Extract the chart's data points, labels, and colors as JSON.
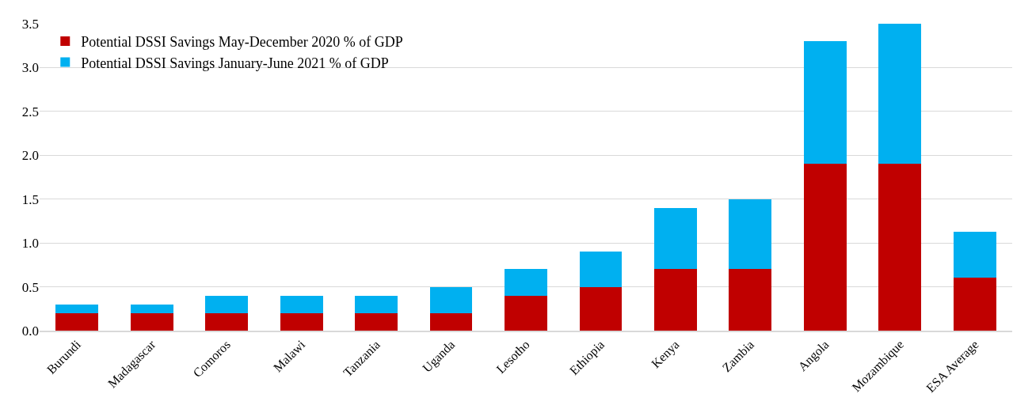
{
  "chart_data": {
    "type": "bar",
    "stacked": true,
    "categories": [
      "Burundi",
      "Madagascar",
      "Comoros",
      "Malawi",
      "Tanzania",
      "Uganda",
      "Lesotho",
      "Ethiopia",
      "Kenya",
      "Zambia",
      "Angola",
      "Mozambique",
      "ESA Average"
    ],
    "series": [
      {
        "name": "Potential DSSI Savings May-December 2020 % of GDP",
        "color": "#c00000",
        "values": [
          0.2,
          0.2,
          0.2,
          0.2,
          0.2,
          0.2,
          0.4,
          0.5,
          0.7,
          0.7,
          1.9,
          1.9,
          0.6
        ]
      },
      {
        "name": "Potential DSSI Savings January-June 2021 % of GDP",
        "color": "#00b0f0",
        "values": [
          0.1,
          0.1,
          0.2,
          0.2,
          0.2,
          0.3,
          0.3,
          0.4,
          0.7,
          0.8,
          1.4,
          1.6,
          0.53
        ]
      }
    ],
    "ylim": [
      0,
      3.5
    ],
    "yticks": [
      {
        "value": 0,
        "label": "0.0"
      },
      {
        "value": 0.5,
        "label": "0.5"
      },
      {
        "value": 1,
        "label": "1.0"
      },
      {
        "value": 1.5,
        "label": "1.5"
      },
      {
        "value": 2,
        "label": "2.0"
      },
      {
        "value": 2.5,
        "label": "2.5"
      },
      {
        "value": 3,
        "label": "3.0"
      },
      {
        "value": 3.5,
        "label": "3.5"
      }
    ],
    "grid": "y",
    "legend": "top left"
  }
}
